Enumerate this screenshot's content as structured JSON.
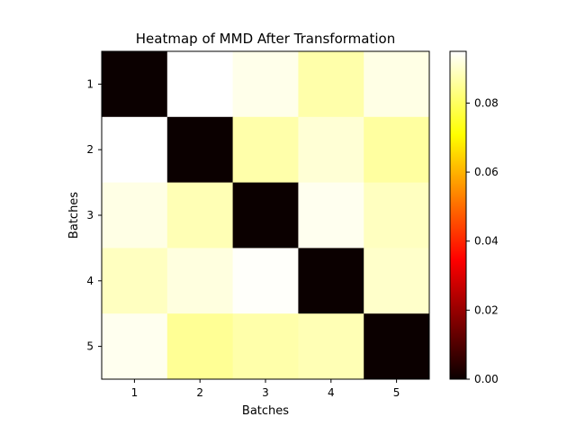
{
  "chart_data": {
    "type": "heatmap",
    "title": "Heatmap of MMD After Transformation",
    "xlabel": "Batches",
    "ylabel": "Batches",
    "x_categories": [
      "1",
      "2",
      "3",
      "4",
      "5"
    ],
    "y_categories": [
      "1",
      "2",
      "3",
      "4",
      "5"
    ],
    "values": [
      [
        0.0,
        0.095,
        0.093,
        0.087,
        0.0925
      ],
      [
        0.095,
        0.0,
        0.087,
        0.091,
        0.086
      ],
      [
        0.0925,
        0.088,
        0.0,
        0.0935,
        0.089
      ],
      [
        0.089,
        0.092,
        0.0945,
        0.0,
        0.09
      ],
      [
        0.0935,
        0.085,
        0.087,
        0.088,
        0.0
      ]
    ],
    "colormap": "hot",
    "colorbar": {
      "vmin": 0.0,
      "vmax": 0.095,
      "ticks": [
        "0.00",
        "0.02",
        "0.04",
        "0.06",
        "0.08"
      ],
      "tick_values": [
        0.0,
        0.02,
        0.04,
        0.06,
        0.08
      ]
    },
    "grid": false
  }
}
